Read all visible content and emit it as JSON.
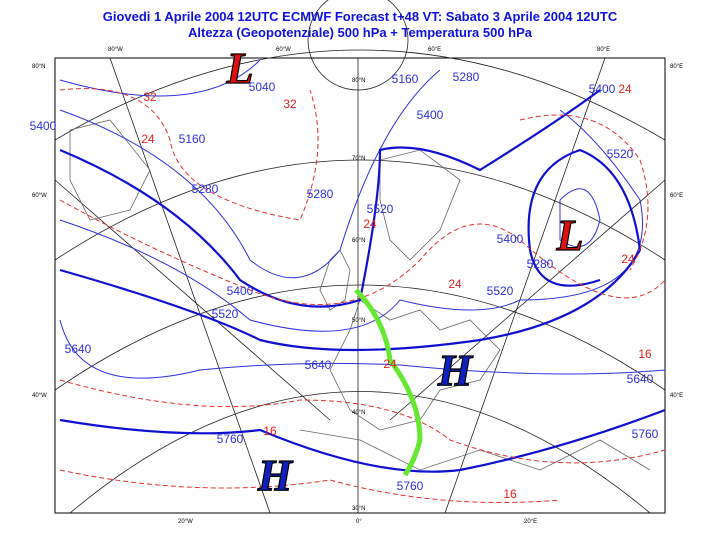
{
  "header": {
    "line1": "Giovedi 1 Aprile 2004 12UTC ECMWF  Forecast t+48 VT: Sabato 3 Aprile 2004 12UTC",
    "line2": "Altezza (Geopotenziale) 500 hPa + Temperatura 500 hPa"
  },
  "map": {
    "lon_labels_top": [
      "80°W",
      "60°W",
      "60°E",
      "80°E"
    ],
    "lat_labels_left": [
      "80°N",
      "60°W",
      "40°W"
    ],
    "lat_labels_right": [
      "80°E",
      "60°E",
      "40°E"
    ],
    "lon_labels_bottom": [
      "20°W",
      "0°",
      "20°E"
    ],
    "inner_lat_labels": [
      "80°N",
      "70°N",
      "60°N",
      "50°N",
      "40°N",
      "30°N"
    ],
    "pressure_centers": [
      "L",
      "L",
      "H",
      "H"
    ],
    "geopotential_labels": [
      "5040",
      "5160",
      "5280",
      "5400",
      "5400",
      "5160",
      "5280",
      "5280",
      "5400",
      "5520",
      "5400",
      "5280",
      "5520",
      "5520",
      "5400",
      "5520",
      "5640",
      "5640",
      "5760",
      "5760",
      "5640",
      "5760"
    ],
    "temperature_labels": [
      "32",
      "24",
      "32",
      "24",
      "24",
      "24",
      "24",
      "16",
      "16",
      "16",
      "24"
    ]
  }
}
